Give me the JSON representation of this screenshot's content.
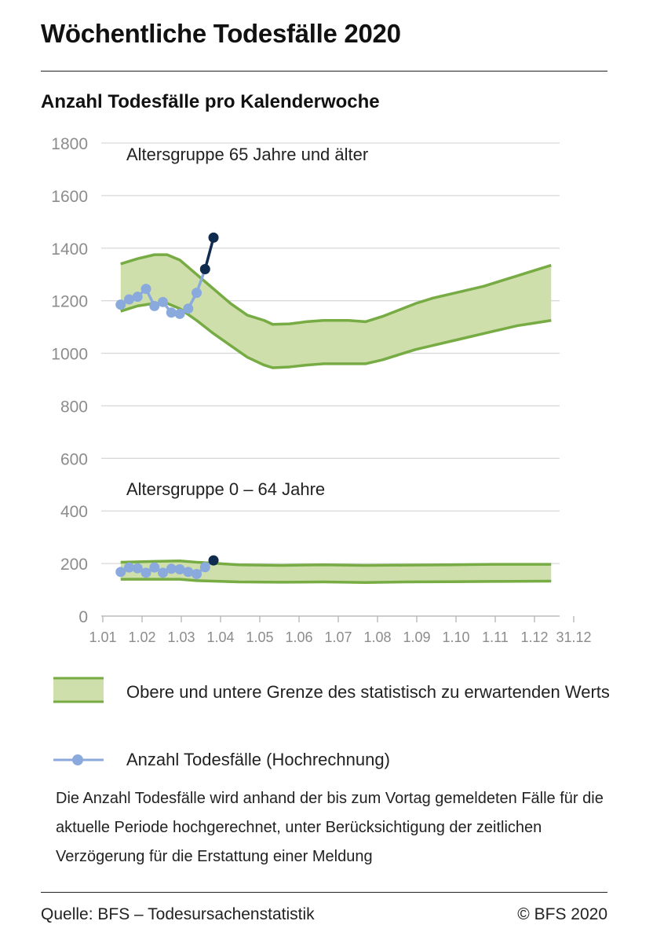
{
  "header": {
    "title": "Wöchentliche Todesfälle 2020",
    "subtitle": "Anzahl Todesfälle pro Kalenderwoche"
  },
  "colors": {
    "band_fill": "#cfdfac",
    "band_line": "#77ab43",
    "series_light": "#8aa9dc",
    "series_dark": "#0f2b4d",
    "grid": "#d9d9d9",
    "tick_text": "#8c8c8c"
  },
  "chart_data": {
    "type": "area",
    "y_ticks": [
      0,
      200,
      400,
      600,
      800,
      1000,
      1200,
      1400,
      1600,
      1800
    ],
    "ylim": [
      0,
      1800
    ],
    "x_ticks": [
      "1.01",
      "1.02",
      "1.03",
      "1.04",
      "1.05",
      "1.06",
      "1.07",
      "1.08",
      "1.09",
      "1.10",
      "1.11",
      "1.12",
      "31.12"
    ],
    "x_unit": "calendar week",
    "xlim": [
      0,
      53
    ],
    "grid": true,
    "panels": [
      {
        "label": "Altersgruppe 65 Jahre und älter",
        "band": {
          "x": [
            1,
            3,
            5,
            6.5,
            8,
            10,
            12,
            14,
            16,
            18,
            19,
            21,
            23,
            25,
            28,
            30,
            32,
            34,
            36,
            38,
            40,
            42,
            44,
            46,
            48,
            50,
            52
          ],
          "upper": [
            1340,
            1360,
            1375,
            1375,
            1355,
            1300,
            1245,
            1190,
            1145,
            1125,
            1110,
            1112,
            1120,
            1125,
            1125,
            1120,
            1140,
            1165,
            1190,
            1210,
            1225,
            1240,
            1255,
            1275,
            1295,
            1315,
            1335
          ],
          "lower": [
            1160,
            1180,
            1190,
            1190,
            1170,
            1125,
            1075,
            1030,
            985,
            955,
            945,
            948,
            955,
            960,
            960,
            960,
            975,
            995,
            1015,
            1030,
            1045,
            1060,
            1075,
            1090,
            1105,
            1115,
            1125
          ]
        },
        "series": {
          "x": [
            1,
            2,
            3,
            4,
            5,
            6,
            7,
            8,
            9,
            10,
            11,
            12
          ],
          "values": [
            1185,
            1205,
            1215,
            1245,
            1180,
            1195,
            1155,
            1150,
            1170,
            1230,
            1320,
            1440
          ],
          "projected_from_index": 10
        }
      },
      {
        "label": "Altersgruppe 0 – 64 Jahre",
        "band": {
          "x": [
            1,
            5,
            8,
            10,
            15,
            20,
            25,
            30,
            35,
            40,
            45,
            52
          ],
          "upper": [
            205,
            208,
            210,
            205,
            195,
            193,
            195,
            193,
            194,
            195,
            197,
            197
          ],
          "lower": [
            140,
            140,
            140,
            135,
            130,
            129,
            130,
            128,
            130,
            131,
            132,
            133
          ]
        },
        "series": {
          "x": [
            1,
            2,
            3,
            4,
            5,
            6,
            7,
            8,
            9,
            10,
            11,
            12
          ],
          "values": [
            168,
            185,
            182,
            165,
            185,
            165,
            180,
            178,
            168,
            160,
            186,
            212
          ],
          "projected_from_index": 11
        }
      }
    ]
  },
  "legend": {
    "band_label": "Obere und untere Grenze des statistisch zu erwartenden Werts",
    "series_label": "Anzahl Todesfälle (Hochrechnung)"
  },
  "note": "Die Anzahl Todesfälle wird anhand der bis zum Vortag gemeldeten Fälle für die aktuelle Periode hochgerechnet, unter Berücksichtigung der zeitlichen Verzögerung für die Erstattung einer Meldung",
  "footer": {
    "source": "Quelle: BFS – Todesursachenstatistik",
    "copyright": "© BFS 2020"
  }
}
